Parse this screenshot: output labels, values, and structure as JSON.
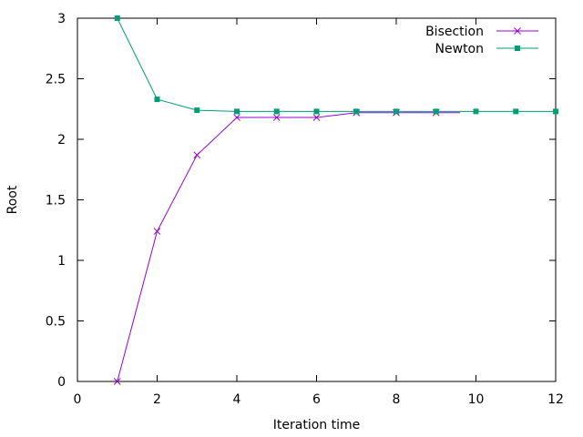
{
  "chart_data": {
    "type": "line",
    "title": "",
    "xlabel": "Iteration time",
    "ylabel": "Root",
    "xlim": [
      0,
      12
    ],
    "ylim": [
      0,
      3
    ],
    "xticks": [
      0,
      2,
      4,
      6,
      8,
      10,
      12
    ],
    "yticks": [
      0,
      0.5,
      1,
      1.5,
      2,
      2.5,
      3
    ],
    "grid": false,
    "legend_position": "top-right",
    "series": [
      {
        "name": "Bisection",
        "color": "#9400d3",
        "marker": "x",
        "x": [
          1,
          2,
          3,
          4,
          5,
          6,
          7,
          8,
          9
        ],
        "y": [
          0,
          1.24,
          1.87,
          2.18,
          2.18,
          2.18,
          2.22,
          2.22,
          2.22
        ],
        "line_end_x": 9.6
      },
      {
        "name": "Newton",
        "color": "#009e73",
        "marker": "square",
        "x": [
          1,
          2,
          3,
          4,
          5,
          6,
          7,
          8,
          9,
          10,
          11,
          12
        ],
        "y": [
          3,
          2.33,
          2.24,
          2.23,
          2.23,
          2.23,
          2.23,
          2.23,
          2.23,
          2.23,
          2.23,
          2.23
        ]
      }
    ]
  }
}
